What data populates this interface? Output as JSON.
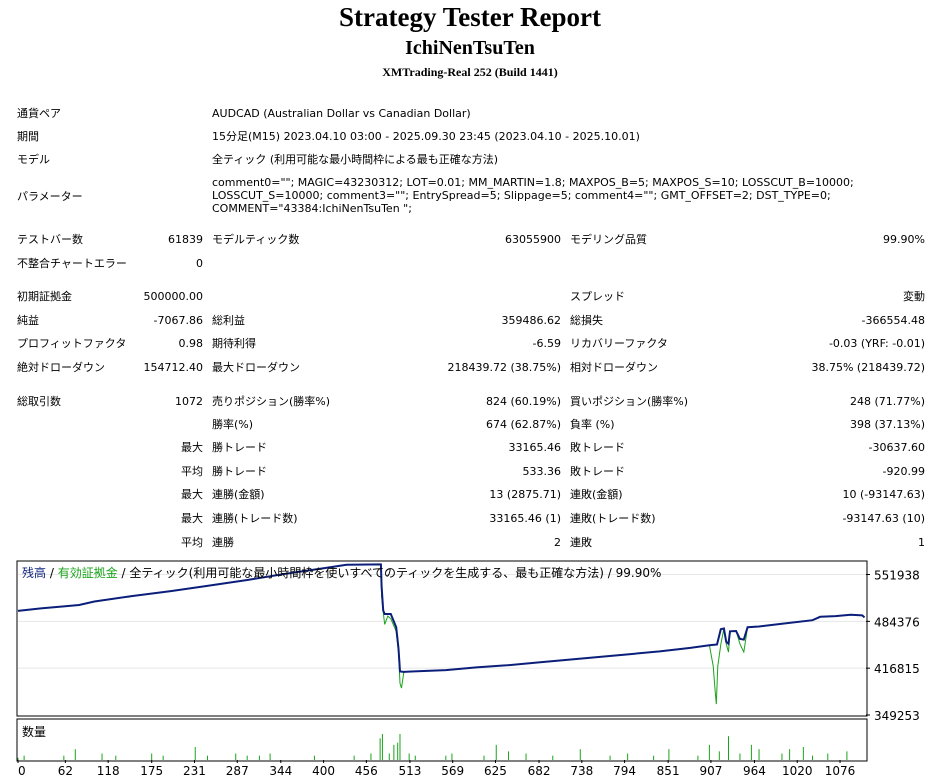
{
  "header": {
    "title": "Strategy Tester Report",
    "ea_name": "IchiNenTsuTen",
    "server": "XMTrading-Real 252 (Build 1441)"
  },
  "info": {
    "symbol_label": "通貨ペア",
    "symbol_value": "AUDCAD (Australian Dollar vs Canadian Dollar)",
    "period_label": "期間",
    "period_value": "15分足(M15) 2023.04.10 03:00 - 2025.09.30 23:45 (2023.04.10 - 2025.10.01)",
    "model_label": "モデル",
    "model_value": "全ティック (利用可能な最小時間枠による最も正確な方法)",
    "params_label": "パラメーター",
    "params_value": "comment0=\"\"; MAGIC=43230312; LOT=0.01; MM_MARTIN=1.8; MAXPOS_B=5; MAXPOS_S=10; LOSSCUT_B=10000; LOSSCUT_S=10000; comment3=\"\"; EntrySpread=5; Slippage=5; comment4=\"\"; GMT_OFFSET=2; DST_TYPE=0; COMMENT=\"43384:IchiNenTsuTen \";"
  },
  "stats": {
    "bars_label": "テストバー数",
    "bars_value": "61839",
    "ticks_label": "モデルティック数",
    "ticks_value": "63055900",
    "quality_label": "モデリング品質",
    "quality_value": "99.90%",
    "mismatch_label": "不整合チャートエラー",
    "mismatch_value": "0",
    "deposit_label": "初期証拠金",
    "deposit_value": "500000.00",
    "spread_label": "スプレッド",
    "spread_value": "変動",
    "net_label": "純益",
    "net_value": "-7067.86",
    "gross_profit_label": "総利益",
    "gross_profit_value": "359486.62",
    "gross_loss_label": "総損失",
    "gross_loss_value": "-366554.48",
    "pf_label": "プロフィットファクタ",
    "pf_value": "0.98",
    "payoff_label": "期待利得",
    "payoff_value": "-6.59",
    "recovery_label": "リカバリーファクタ",
    "recovery_value": "-0.03 (YRF: -0.01)",
    "abs_dd_label": "絶対ドローダウン",
    "abs_dd_value": "154712.40",
    "max_dd_label": "最大ドローダウン",
    "max_dd_value": "218439.72 (38.75%)",
    "rel_dd_label": "相対ドローダウン",
    "rel_dd_value": "38.75% (218439.72)",
    "total_trades_label": "総取引数",
    "total_trades_value": "1072",
    "short_label": "売りポジション(勝率%)",
    "short_value": "824 (60.19%)",
    "long_label": "買いポジション(勝率%)",
    "long_value": "248 (71.77%)",
    "win_rate_label": "勝率(%)",
    "win_rate_value": "674 (62.87%)",
    "loss_rate_label": "負率 (%)",
    "loss_rate_value": "398 (37.13%)",
    "max_label": "最大",
    "avg_label": "平均",
    "win_trade_label": "勝トレード",
    "loss_trade_label": "敗トレード",
    "max_win_value": "33165.46",
    "max_loss_value": "-30637.60",
    "avg_win_value": "533.36",
    "avg_loss_value": "-920.99",
    "cons_win_money_label": "連勝(金額)",
    "cons_win_money_value": "13 (2875.71)",
    "cons_loss_money_label": "連敗(金額)",
    "cons_loss_money_value": "10 (-93147.63)",
    "cons_win_count_label": "連勝(トレード数)",
    "cons_win_count_value": "33165.46 (1)",
    "cons_loss_count_label": "連敗(トレード数)",
    "cons_loss_count_value": "-93147.63 (10)",
    "avg_cons_win_label": "連勝",
    "avg_cons_win_value": "2",
    "avg_cons_loss_label": "連敗",
    "avg_cons_loss_value": "1"
  },
  "chart_data": {
    "type": "line",
    "legend": {
      "balance": "残高",
      "sep1": " / ",
      "equity": "有効証拠金",
      "rest": " / 全ティック(利用可能な最小時間枠を使いすべてのティックを生成する、最も正確な方法) / 99.90%"
    },
    "volume_label": "数量",
    "colors": {
      "balance": "#0b1f7a",
      "equity": "#1aa31a",
      "volume": "#1aa31a"
    },
    "ylim": [
      349253,
      570000
    ],
    "y_ticks": [
      "551938",
      "484376",
      "416815",
      "349253"
    ],
    "y_tick_values": [
      551938,
      484376,
      416815,
      349253
    ],
    "xlim": [
      0,
      1110
    ],
    "x_ticks": [
      "0",
      "62",
      "118",
      "175",
      "231",
      "287",
      "344",
      "400",
      "456",
      "513",
      "569",
      "625",
      "682",
      "738",
      "794",
      "851",
      "907",
      "964",
      "1020",
      "1076"
    ],
    "x_tick_values": [
      0,
      62,
      118,
      175,
      231,
      287,
      344,
      400,
      456,
      513,
      569,
      625,
      682,
      738,
      794,
      851,
      907,
      964,
      1020,
      1076
    ],
    "series": [
      {
        "name": "残高",
        "x": [
          0,
          30,
          60,
          80,
          100,
          150,
          200,
          250,
          300,
          350,
          400,
          430,
          475,
          476,
          478,
          480,
          488,
          495,
          498,
          500,
          505,
          515,
          560,
          600,
          640,
          680,
          720,
          760,
          800,
          840,
          880,
          905,
          915,
          920,
          924,
          927,
          930,
          932,
          940,
          945,
          950,
          955,
          970,
          1000,
          1040,
          1050,
          1070,
          1090,
          1105,
          1108
        ],
        "y": [
          499500,
          503000,
          506000,
          508000,
          513000,
          521000,
          528000,
          536000,
          544000,
          553000,
          561000,
          566000,
          566500,
          535000,
          500000,
          495000,
          495000,
          476000,
          445000,
          412000,
          411500,
          412000,
          414000,
          418000,
          421000,
          425000,
          429000,
          433000,
          437000,
          441000,
          446000,
          450000,
          451000,
          473000,
          474000,
          455000,
          452000,
          470000,
          470500,
          459000,
          458000,
          476000,
          477000,
          481000,
          486000,
          491000,
          492000,
          494000,
          493000,
          490000
        ]
      },
      {
        "name": "有効証拠金",
        "x": [
          0,
          30,
          60,
          80,
          100,
          150,
          200,
          250,
          300,
          350,
          400,
          430,
          475,
          476,
          478,
          480,
          484,
          488,
          495,
          498,
          500,
          502,
          505,
          515,
          560,
          600,
          640,
          680,
          720,
          760,
          800,
          840,
          880,
          905,
          910,
          912,
          914,
          916,
          920,
          924,
          927,
          930,
          932,
          940,
          945,
          950,
          955,
          970,
          1000,
          1040,
          1050,
          1070,
          1090,
          1105,
          1108
        ],
        "y": [
          499500,
          503000,
          506000,
          508000,
          513000,
          521000,
          528000,
          536000,
          544000,
          553000,
          561000,
          566000,
          566500,
          520000,
          498000,
          480000,
          492000,
          488000,
          470000,
          440000,
          395000,
          388000,
          411000,
          412000,
          414000,
          418000,
          421000,
          425000,
          429000,
          433000,
          437000,
          441000,
          446000,
          450000,
          420000,
          392000,
          365000,
          420000,
          451000,
          474000,
          452000,
          440000,
          470000,
          470500,
          452000,
          440000,
          476000,
          477000,
          481000,
          486000,
          491000,
          492000,
          494000,
          493000,
          490000
        ]
      }
    ],
    "volume": {
      "x": [
        0,
        8,
        60,
        75,
        110,
        128,
        175,
        190,
        232,
        248,
        285,
        300,
        316,
        330,
        388,
        440,
        462,
        474,
        477,
        486,
        492,
        497,
        500,
        512,
        520,
        560,
        568,
        610,
        626,
        642,
        665,
        700,
        736,
        775,
        798,
        832,
        852,
        890,
        905,
        918,
        930,
        945,
        960,
        970,
        1000,
        1010,
        1028,
        1040,
        1060,
        1085
      ],
      "v": [
        1,
        2,
        2,
        5,
        3,
        2,
        3,
        2,
        6,
        2,
        3,
        2,
        2,
        3,
        2,
        2,
        3,
        10,
        12,
        3,
        7,
        8,
        12,
        3,
        2,
        2,
        3,
        2,
        7,
        4,
        3,
        2,
        5,
        2,
        3,
        2,
        5,
        2,
        7,
        4,
        11,
        3,
        7,
        5,
        3,
        5,
        6,
        2,
        3,
        4
      ]
    }
  }
}
